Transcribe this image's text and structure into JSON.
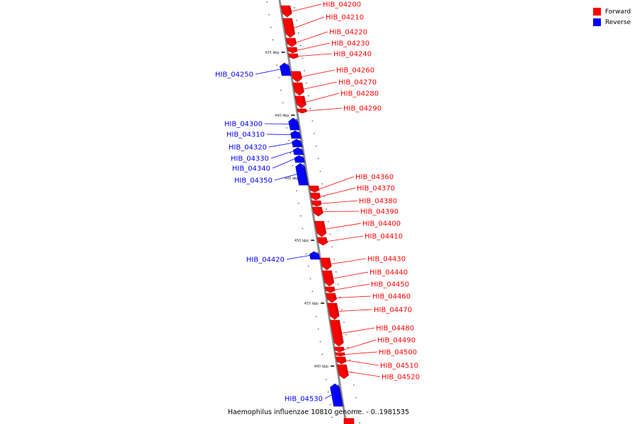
{
  "caption": "Haemophilus influenzae 10810 genome. - 0..1981535",
  "legend": [
    {
      "label": "Forward",
      "color": "#ff0000"
    },
    {
      "label": "Reverse",
      "color": "#0000ff"
    }
  ],
  "colors": {
    "forward": "#ff0000",
    "forward_dark": "#b00000",
    "reverse": "#0000ff",
    "reverse_dark": "#0000a8",
    "backbone": "#8c8c8c"
  },
  "scale_labels": [
    "435 kbp",
    "440 kbp",
    "445 kbp",
    "450 kbp",
    "455 kbp",
    "460 kbp"
  ],
  "genes": [
    {
      "name": "HIB_04200",
      "strand": "forward"
    },
    {
      "name": "HIB_04210",
      "strand": "forward"
    },
    {
      "name": "HIB_04220",
      "strand": "forward"
    },
    {
      "name": "HIB_04230",
      "strand": "forward"
    },
    {
      "name": "HIB_04240",
      "strand": "forward"
    },
    {
      "name": "HIB_04250",
      "strand": "reverse"
    },
    {
      "name": "HIB_04260",
      "strand": "forward"
    },
    {
      "name": "HIB_04270",
      "strand": "forward"
    },
    {
      "name": "HIB_04280",
      "strand": "forward"
    },
    {
      "name": "HIB_04290",
      "strand": "forward"
    },
    {
      "name": "HIB_04300",
      "strand": "reverse"
    },
    {
      "name": "HIB_04310",
      "strand": "reverse"
    },
    {
      "name": "HIB_04320",
      "strand": "reverse"
    },
    {
      "name": "HIB_04330",
      "strand": "reverse"
    },
    {
      "name": "HIB_04340",
      "strand": "reverse"
    },
    {
      "name": "HIB_04350",
      "strand": "reverse"
    },
    {
      "name": "HIB_04360",
      "strand": "forward"
    },
    {
      "name": "HIB_04370",
      "strand": "forward"
    },
    {
      "name": "HIB_04380",
      "strand": "forward"
    },
    {
      "name": "HIB_04390",
      "strand": "forward"
    },
    {
      "name": "HIB_04400",
      "strand": "forward"
    },
    {
      "name": "HIB_04410",
      "strand": "forward"
    },
    {
      "name": "HIB_04420",
      "strand": "reverse"
    },
    {
      "name": "HIB_04430",
      "strand": "forward"
    },
    {
      "name": "HIB_04440",
      "strand": "forward"
    },
    {
      "name": "HIB_04450",
      "strand": "forward"
    },
    {
      "name": "HIB_04460",
      "strand": "forward"
    },
    {
      "name": "HIB_04470",
      "strand": "forward"
    },
    {
      "name": "HIB_04480",
      "strand": "forward"
    },
    {
      "name": "HIB_04490",
      "strand": "forward"
    },
    {
      "name": "HIB_04500",
      "strand": "forward"
    },
    {
      "name": "HIB_04510",
      "strand": "forward"
    },
    {
      "name": "HIB_04520",
      "strand": "forward"
    },
    {
      "name": "HIB_04530",
      "strand": "reverse"
    }
  ]
}
